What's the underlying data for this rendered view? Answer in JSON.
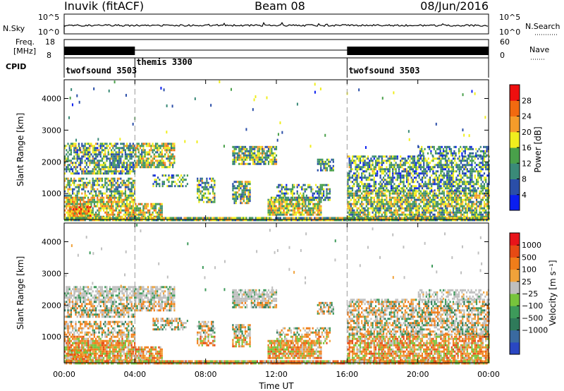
{
  "header": {
    "station": "Inuvik (fitACF)",
    "beam": "Beam 08",
    "date": "08/Jun/2016"
  },
  "noise_panel": {
    "left_label": "N.Sky",
    "right_label": "N.Search",
    "tick_top": "10^5",
    "tick_bottom": "10^0"
  },
  "freq_panel": {
    "left_label_1": "Freq.",
    "left_label_2": "[MHz]",
    "right_label": "Nave",
    "left_ticks": [
      "18",
      "8"
    ],
    "right_ticks": [
      "60",
      "0"
    ]
  },
  "cpid_panel": {
    "label": "CPID",
    "segments": [
      {
        "name": "twofsound 3503",
        "start_hour": 0
      },
      {
        "name": "themis 3300",
        "start_hour": 4
      },
      {
        "name": "twofsound 3503",
        "start_hour": 16
      }
    ]
  },
  "chart_data": [
    {
      "type": "heatmap",
      "name": "power",
      "ylabel": "Slant Range [km]",
      "ylim": [
        180,
        4590
      ],
      "yticks": [
        "1000",
        "2000",
        "3000",
        "4000"
      ],
      "xlim_hours": [
        0,
        24
      ],
      "colorbar": {
        "label": "Power [dB]",
        "ticks": [
          "4",
          "8",
          "12",
          "16",
          "20",
          "24",
          "28"
        ],
        "colors": [
          "#0a1ef0",
          "#2a4ea8",
          "#3a8a78",
          "#49a04a",
          "#f0ee1e",
          "#f59c2a",
          "#f26a10",
          "#ee0f0f"
        ]
      }
    },
    {
      "type": "heatmap",
      "name": "velocity",
      "ylabel": "Slant Range [km]",
      "ylim": [
        180,
        4590
      ],
      "yticks": [
        "1000",
        "2000",
        "3000",
        "4000"
      ],
      "xlim_hours": [
        0,
        24
      ],
      "colorbar": {
        "label": "Velocity [m s⁻¹]",
        "ticks": [
          "1000",
          "500",
          "100",
          "25",
          "−25",
          "−100",
          "−500",
          "−1000"
        ],
        "colors": [
          "#2a47c2",
          "#3a6aa0",
          "#2f7a5a",
          "#3d9a5a",
          "#77c43c",
          "#bfbfbf",
          "#f0a23a",
          "#f07d1a",
          "#e64a14",
          "#e8141a"
        ]
      }
    }
  ],
  "x_axis": {
    "label": "Time UT",
    "ticks": [
      "00:00",
      "04:00",
      "08:00",
      "12:00",
      "16:00",
      "20:00",
      "00:00"
    ]
  }
}
